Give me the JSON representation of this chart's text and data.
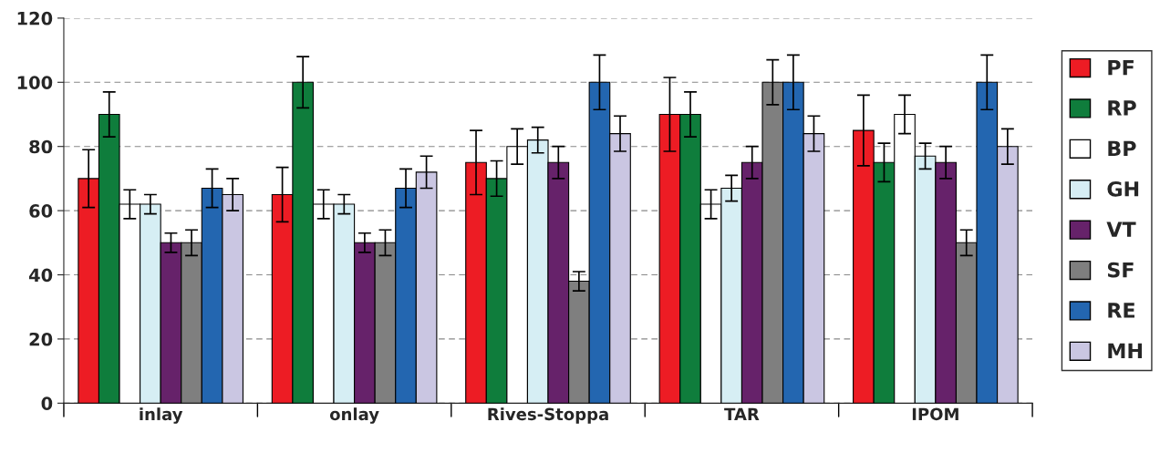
{
  "chart_data": {
    "type": "bar",
    "categories": [
      "inlay",
      "onlay",
      "Rives-Stoppa",
      "TAR",
      "IPOM"
    ],
    "series": [
      {
        "name": "PF",
        "color": "#ed1c24",
        "values": [
          70,
          65,
          75,
          90,
          85
        ],
        "errors": [
          9,
          8.5,
          10,
          11.5,
          11
        ]
      },
      {
        "name": "RP",
        "color": "#0f7d3c",
        "values": [
          90,
          100,
          70,
          90,
          75
        ],
        "errors": [
          7,
          8,
          5.5,
          7,
          6
        ]
      },
      {
        "name": "BP",
        "color": "#ffffff",
        "values": [
          62,
          62,
          80,
          62,
          90
        ],
        "errors": [
          4.5,
          4.5,
          5.5,
          4.5,
          6
        ]
      },
      {
        "name": "GH",
        "color": "#d6eef4",
        "values": [
          62,
          62,
          82,
          67,
          77
        ],
        "errors": [
          3,
          3,
          4,
          4,
          4
        ]
      },
      {
        "name": "VT",
        "color": "#66226a",
        "values": [
          50,
          50,
          75,
          75,
          75
        ],
        "errors": [
          3,
          3,
          5,
          5,
          5
        ]
      },
      {
        "name": "SF",
        "color": "#7f7f7f",
        "values": [
          50,
          50,
          38,
          100,
          50
        ],
        "errors": [
          4,
          4,
          3,
          7,
          4
        ]
      },
      {
        "name": "RE",
        "color": "#2366b0",
        "values": [
          67,
          67,
          100,
          100,
          100
        ],
        "errors": [
          6,
          6,
          8.5,
          8.5,
          8.5
        ]
      },
      {
        "name": "MH",
        "color": "#cac6e2",
        "values": [
          65,
          72,
          84,
          84,
          80
        ],
        "errors": [
          5,
          5,
          5.5,
          5.5,
          5.5
        ]
      }
    ],
    "ylim": [
      0,
      120
    ],
    "yticks": [
      0,
      20,
      40,
      60,
      80,
      100,
      120
    ],
    "grid": "y",
    "legend": "right"
  }
}
